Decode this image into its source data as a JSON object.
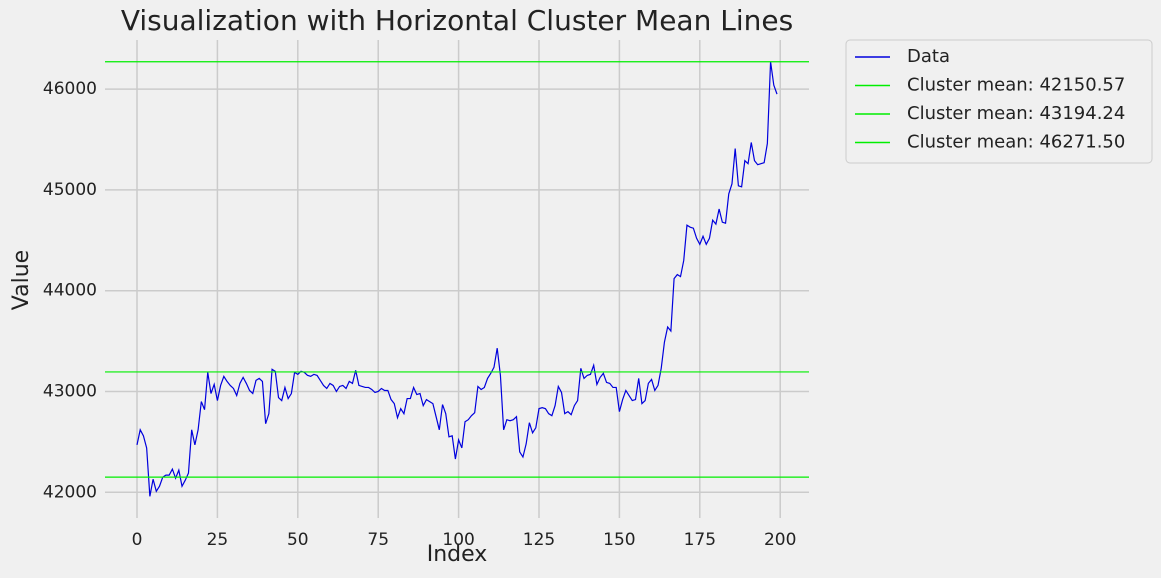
{
  "chart_data": {
    "type": "line",
    "title": "Visualization with Horizontal Cluster Mean Lines",
    "x_label": "Index",
    "y_label": "Value",
    "x": [
      0,
      1,
      2,
      3,
      4,
      5,
      6,
      7,
      8,
      9,
      10,
      11,
      12,
      13,
      14,
      15,
      16,
      17,
      18,
      19,
      20,
      21,
      22,
      23,
      24,
      25,
      26,
      27,
      28,
      29,
      30,
      31,
      32,
      33,
      34,
      35,
      36,
      37,
      38,
      39,
      40,
      41,
      42,
      43,
      44,
      45,
      46,
      47,
      48,
      49,
      50,
      51,
      52,
      53,
      54,
      55,
      56,
      57,
      58,
      59,
      60,
      61,
      62,
      63,
      64,
      65,
      66,
      67,
      68,
      69,
      70,
      71,
      72,
      73,
      74,
      75,
      76,
      77,
      78,
      79,
      80,
      81,
      82,
      83,
      84,
      85,
      86,
      87,
      88,
      89,
      90,
      91,
      92,
      93,
      94,
      95,
      96,
      97,
      98,
      99,
      100,
      101,
      102,
      103,
      104,
      105,
      106,
      107,
      108,
      109,
      110,
      111,
      112,
      113,
      114,
      115,
      116,
      117,
      118,
      119,
      120,
      121,
      122,
      123,
      124,
      125,
      126,
      127,
      128,
      129,
      130,
      131,
      132,
      133,
      134,
      135,
      136,
      137,
      138,
      139,
      140,
      141,
      142,
      143,
      144,
      145,
      146,
      147,
      148,
      149,
      150,
      151,
      152,
      153,
      154,
      155,
      156,
      157,
      158,
      159,
      160,
      161,
      162,
      163,
      164,
      165,
      166,
      167,
      168,
      169,
      170,
      171,
      172,
      173,
      174,
      175,
      176,
      177,
      178,
      179,
      180,
      181,
      182,
      183,
      184,
      185,
      186,
      187,
      188,
      189,
      190,
      191,
      192,
      193,
      194,
      195,
      196,
      197,
      198,
      199
    ],
    "series": [
      {
        "name": "Data",
        "color": "#0000dd",
        "values": [
          42470,
          42620,
          42560,
          42440,
          41960,
          42130,
          42010,
          42060,
          42150,
          42170,
          42170,
          42230,
          42140,
          42220,
          42060,
          42120,
          42190,
          42620,
          42470,
          42620,
          42900,
          42820,
          43190,
          42980,
          43070,
          42910,
          43060,
          43150,
          43100,
          43060,
          43030,
          42960,
          43080,
          43140,
          43080,
          43010,
          42980,
          43110,
          43130,
          43100,
          42680,
          42780,
          43220,
          43200,
          42940,
          42910,
          43040,
          42930,
          42980,
          43190,
          43170,
          43200,
          43190,
          43160,
          43150,
          43170,
          43160,
          43110,
          43060,
          43030,
          43080,
          43060,
          43000,
          43050,
          43060,
          43030,
          43100,
          43080,
          43210,
          43060,
          43050,
          43040,
          43040,
          43020,
          42990,
          43000,
          43030,
          43010,
          43010,
          42920,
          42880,
          42740,
          42830,
          42780,
          42930,
          42930,
          43040,
          42970,
          42980,
          42860,
          42920,
          42900,
          42880,
          42750,
          42620,
          42870,
          42780,
          42550,
          42560,
          42330,
          42520,
          42440,
          42700,
          42720,
          42760,
          42790,
          43050,
          43020,
          43040,
          43130,
          43180,
          43240,
          43430,
          43160,
          42620,
          42720,
          42710,
          42720,
          42750,
          42400,
          42350,
          42480,
          42690,
          42590,
          42640,
          42830,
          42840,
          42830,
          42780,
          42760,
          42860,
          43050,
          42990,
          42780,
          42800,
          42770,
          42860,
          42910,
          43230,
          43130,
          43160,
          43170,
          43260,
          43070,
          43140,
          43180,
          43090,
          43080,
          43040,
          43040,
          42800,
          42920,
          43010,
          42960,
          42910,
          42920,
          43130,
          42880,
          42910,
          43080,
          43120,
          43010,
          43060,
          43230,
          43490,
          43640,
          43600,
          44120,
          44160,
          44140,
          44300,
          44650,
          44630,
          44620,
          44520,
          44460,
          44540,
          44460,
          44520,
          44700,
          44660,
          44810,
          44680,
          44670,
          44960,
          45060,
          45410,
          45040,
          45030,
          45290,
          45260,
          45470,
          45290,
          45250,
          45260,
          45270,
          45460,
          46271.5,
          46040,
          45950
        ]
      }
    ],
    "hlines": [
      {
        "name": "Cluster mean: 42150.57",
        "value": 42150.57,
        "color": "#00ee00"
      },
      {
        "name": "Cluster mean: 43194.24",
        "value": 43194.24,
        "color": "#00ee00"
      },
      {
        "name": "Cluster mean: 46271.50",
        "value": 46271.5,
        "color": "#00ee00"
      }
    ],
    "xlim": [
      -9.95,
      208.95
    ],
    "ylim": [
      41745,
      46487
    ],
    "xticks": [
      0,
      25,
      50,
      75,
      100,
      125,
      150,
      175,
      200
    ],
    "yticks": [
      42000,
      43000,
      44000,
      45000,
      46000
    ],
    "grid": true,
    "legend": "outside-upper-right"
  }
}
